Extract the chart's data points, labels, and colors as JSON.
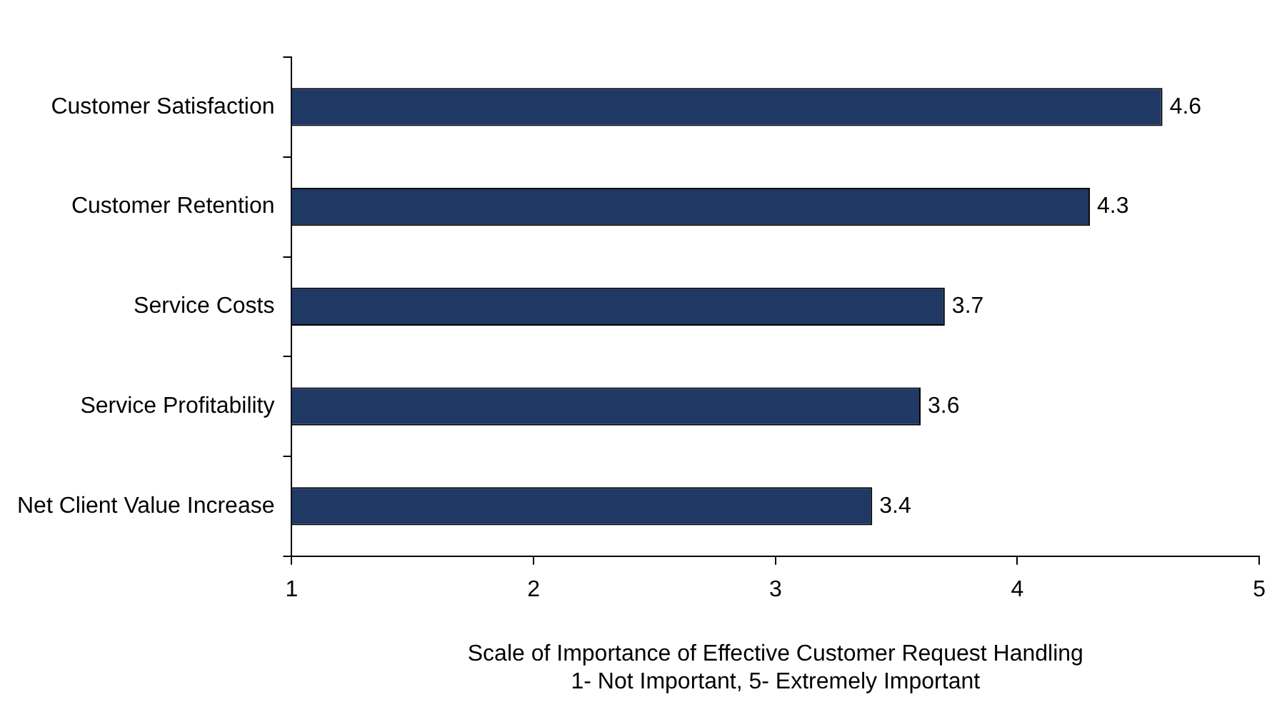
{
  "chart_data": {
    "type": "bar",
    "orientation": "horizontal",
    "categories": [
      "Customer Satisfaction",
      "Customer Retention",
      "Service Costs",
      "Service Profitability",
      "Net Client Value Increase"
    ],
    "values": [
      4.6,
      4.3,
      3.7,
      3.6,
      3.4
    ],
    "color": "#1f3864",
    "xlim": [
      1,
      5
    ],
    "xticks": [
      1,
      2,
      3,
      4,
      5
    ],
    "xlabel": "Scale of Importance of Effective Customer Request Handling\n1- Not Important, 5- Extremely Important",
    "data_labels": true,
    "grid": false,
    "legend": false
  }
}
